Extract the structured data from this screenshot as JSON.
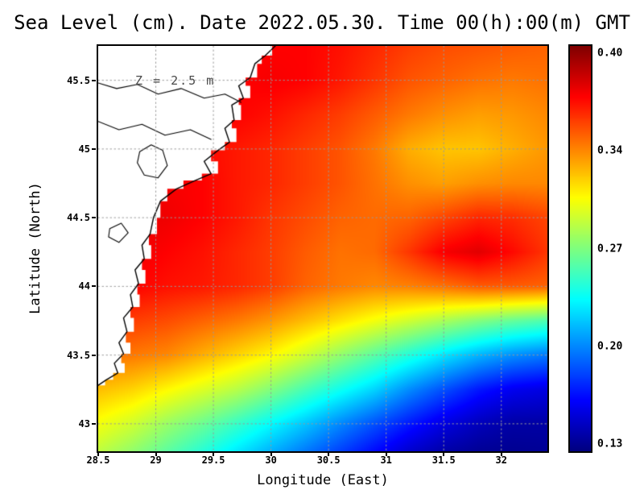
{
  "title": "Sea Level (cm). Date 2022.05.30. Time 00(h):00(m) GMT",
  "annotation": "Z = 2.5 m",
  "axes": {
    "x_label": "Longitude (East)",
    "y_label": "Latitude (North)",
    "x_tick_labels": [
      "28.5",
      "29",
      "29.5",
      "30",
      "30.5",
      "31",
      "31.5",
      "32"
    ],
    "x_tick_values": [
      28.5,
      29,
      29.5,
      30,
      30.5,
      31,
      31.5,
      32
    ],
    "y_tick_labels": [
      "45.5",
      "45",
      "44.5",
      "44",
      "43.5",
      "43"
    ],
    "y_tick_values": [
      45.5,
      45,
      44.5,
      44,
      43.5,
      43
    ],
    "grid": "dotted"
  },
  "colorbar": {
    "labels": [
      "0.40",
      "0.34",
      "0.27",
      "0.20",
      "0.13"
    ],
    "min": 0.13,
    "max": 0.4,
    "colormap": "jet"
  },
  "chart_data": {
    "type": "heatmap",
    "title": "Sea Level (cm). Date 2022.05.30. Time 00(h):00(m) GMT",
    "xlabel": "Longitude (East)",
    "ylabel": "Latitude (North)",
    "x_range": [
      28.5,
      32.4
    ],
    "y_range": [
      42.8,
      45.75
    ],
    "value_range": [
      0.13,
      0.4
    ],
    "colormap": "jet",
    "lons": [
      28.5,
      28.8,
      29.1,
      29.4,
      29.7,
      30.0,
      30.3,
      30.6,
      30.9,
      31.2,
      31.5,
      31.8,
      32.1,
      32.4
    ],
    "lats": [
      45.75,
      45.5,
      45.25,
      45.0,
      44.75,
      44.5,
      44.25,
      44.0,
      43.75,
      43.5,
      43.25,
      43.0,
      42.8
    ],
    "values": [
      [
        0.36,
        0.36,
        0.36,
        0.362,
        0.364,
        0.366,
        0.366,
        0.362,
        0.356,
        0.35,
        0.346,
        0.344,
        0.342,
        0.34
      ],
      [
        0.36,
        0.36,
        0.362,
        0.364,
        0.366,
        0.368,
        0.366,
        0.36,
        0.352,
        0.344,
        0.34,
        0.336,
        0.334,
        0.336
      ],
      [
        0.362,
        0.362,
        0.364,
        0.364,
        0.366,
        0.362,
        0.356,
        0.35,
        0.342,
        0.334,
        0.328,
        0.324,
        0.326,
        0.33
      ],
      [
        0.366,
        0.366,
        0.366,
        0.364,
        0.36,
        0.356,
        0.35,
        0.344,
        0.334,
        0.32,
        0.314,
        0.314,
        0.32,
        0.326
      ],
      [
        0.37,
        0.37,
        0.368,
        0.366,
        0.36,
        0.356,
        0.35,
        0.344,
        0.336,
        0.328,
        0.324,
        0.328,
        0.33,
        0.33
      ],
      [
        0.372,
        0.372,
        0.37,
        0.366,
        0.36,
        0.352,
        0.346,
        0.34,
        0.338,
        0.34,
        0.348,
        0.356,
        0.354,
        0.348
      ],
      [
        0.37,
        0.37,
        0.366,
        0.362,
        0.356,
        0.35,
        0.342,
        0.336,
        0.338,
        0.352,
        0.368,
        0.374,
        0.364,
        0.352
      ],
      [
        0.366,
        0.366,
        0.362,
        0.36,
        0.356,
        0.35,
        0.34,
        0.334,
        0.33,
        0.332,
        0.336,
        0.342,
        0.342,
        0.34
      ],
      [
        0.352,
        0.35,
        0.346,
        0.34,
        0.334,
        0.326,
        0.316,
        0.306,
        0.296,
        0.286,
        0.276,
        0.266,
        0.258,
        0.252
      ],
      [
        0.336,
        0.334,
        0.33,
        0.32,
        0.31,
        0.3,
        0.286,
        0.27,
        0.255,
        0.24,
        0.225,
        0.212,
        0.202,
        0.196
      ],
      [
        0.316,
        0.31,
        0.3,
        0.29,
        0.28,
        0.266,
        0.25,
        0.235,
        0.22,
        0.201,
        0.185,
        0.17,
        0.16,
        0.156
      ],
      [
        0.296,
        0.286,
        0.272,
        0.26,
        0.246,
        0.231,
        0.216,
        0.2,
        0.185,
        0.17,
        0.156,
        0.146,
        0.14,
        0.14
      ],
      [
        0.282,
        0.27,
        0.256,
        0.242,
        0.226,
        0.211,
        0.196,
        0.181,
        0.166,
        0.151,
        0.141,
        0.136,
        0.135,
        0.136
      ]
    ],
    "land": {
      "coastline": [
        [
          30.05,
          45.76
        ],
        [
          29.95,
          45.68
        ],
        [
          29.86,
          45.62
        ],
        [
          29.82,
          45.52
        ],
        [
          29.72,
          45.46
        ],
        [
          29.76,
          45.37
        ],
        [
          29.66,
          45.32
        ],
        [
          29.68,
          45.21
        ],
        [
          29.6,
          45.15
        ],
        [
          29.64,
          45.05
        ],
        [
          29.54,
          44.99
        ],
        [
          29.42,
          44.91
        ],
        [
          29.48,
          44.82
        ],
        [
          29.34,
          44.77
        ],
        [
          29.18,
          44.71
        ],
        [
          29.04,
          44.62
        ],
        [
          28.98,
          44.5
        ],
        [
          28.95,
          44.38
        ],
        [
          28.88,
          44.3
        ],
        [
          28.9,
          44.2
        ],
        [
          28.82,
          44.12
        ],
        [
          28.85,
          44.02
        ],
        [
          28.78,
          43.94
        ],
        [
          28.8,
          43.85
        ],
        [
          28.72,
          43.77
        ],
        [
          28.75,
          43.67
        ],
        [
          28.68,
          43.59
        ],
        [
          28.72,
          43.51
        ],
        [
          28.64,
          43.44
        ],
        [
          28.67,
          43.37
        ],
        [
          28.57,
          43.32
        ],
        [
          28.5,
          43.28
        ]
      ],
      "rivers": [
        [
          [
            28.5,
            45.48
          ],
          [
            28.66,
            45.44
          ],
          [
            28.84,
            45.47
          ],
          [
            29.02,
            45.4
          ],
          [
            29.22,
            45.44
          ],
          [
            29.42,
            45.37
          ],
          [
            29.6,
            45.4
          ],
          [
            29.74,
            45.34
          ]
        ],
        [
          [
            28.5,
            45.2
          ],
          [
            28.68,
            45.14
          ],
          [
            28.88,
            45.18
          ],
          [
            29.08,
            45.1
          ],
          [
            29.3,
            45.14
          ],
          [
            29.48,
            45.07
          ]
        ]
      ],
      "lakes": [
        [
          [
            28.86,
            44.98
          ],
          [
            28.96,
            45.03
          ],
          [
            29.06,
            44.99
          ],
          [
            29.1,
            44.88
          ],
          [
            29.02,
            44.79
          ],
          [
            28.9,
            44.81
          ],
          [
            28.84,
            44.9
          ]
        ],
        [
          [
            28.6,
            44.42
          ],
          [
            28.7,
            44.46
          ],
          [
            28.76,
            44.39
          ],
          [
            28.68,
            44.32
          ],
          [
            28.59,
            44.36
          ]
        ]
      ]
    }
  }
}
